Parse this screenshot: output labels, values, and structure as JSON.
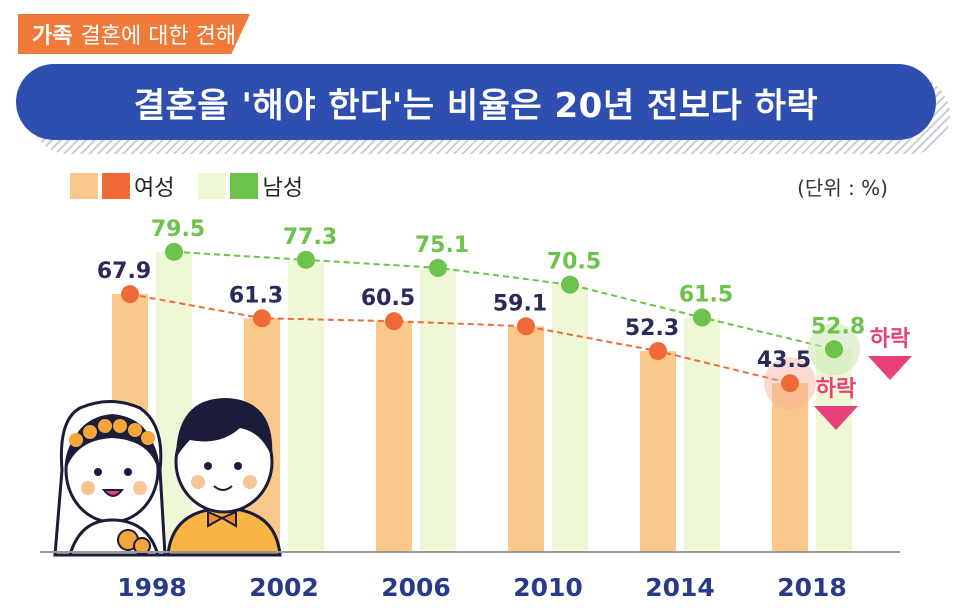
{
  "header": {
    "tag_bold": "가족",
    "tag_text": "결혼에 대한 견해",
    "title": "결혼을 '해야 한다'는 비율은 20년 전보다 하락"
  },
  "legend": {
    "female": "여성",
    "male": "남성",
    "unit": "(단위 : %)"
  },
  "annotations": {
    "male_drop": "하락",
    "female_drop": "하락"
  },
  "colors": {
    "female_bar": "#f9c88a",
    "female_line": "#f06a38",
    "male_bar": "#eef7d6",
    "male_line": "#6cc24a",
    "banner": "#2f4fb0",
    "drop": "#e8417a",
    "value_female": "#2a2a5a",
    "value_male": "#6cc24a"
  },
  "chart_data": {
    "type": "bar",
    "title": "결혼을 '해야 한다'는 비율은 20년 전보다 하락",
    "categories": [
      "1998",
      "2002",
      "2006",
      "2010",
      "2014",
      "2018"
    ],
    "series": [
      {
        "name": "여성",
        "values": [
          67.9,
          61.3,
          60.5,
          59.1,
          52.3,
          43.5
        ]
      },
      {
        "name": "남성",
        "values": [
          79.5,
          77.3,
          75.1,
          70.5,
          61.5,
          52.8
        ]
      }
    ],
    "xlabel": "",
    "ylabel": "",
    "unit": "%",
    "ylim": [
      0,
      100
    ]
  }
}
